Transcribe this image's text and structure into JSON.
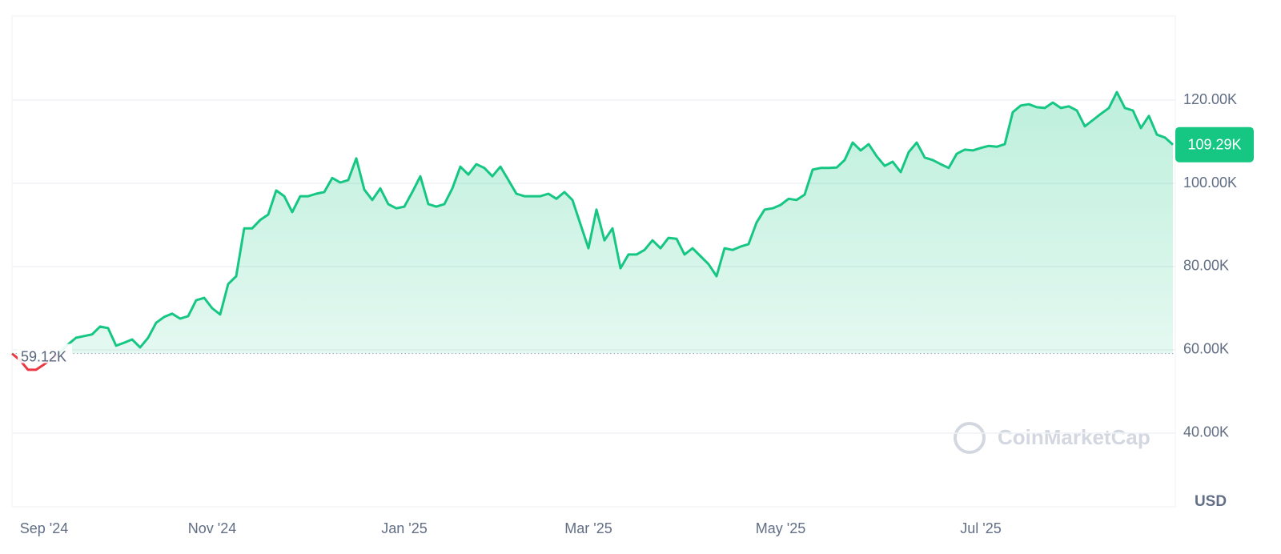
{
  "chart_data": {
    "type": "line",
    "categories": [
      null,
      null,
      null,
      null,
      "Sep '24",
      null,
      null,
      null,
      null,
      null,
      null,
      null,
      null,
      null,
      null,
      null,
      null,
      null,
      null,
      null,
      null,
      null,
      null,
      null,
      null,
      "Nov '24",
      null,
      null,
      null,
      null,
      null,
      null,
      null,
      null,
      null,
      null,
      null,
      null,
      null,
      null,
      null,
      null,
      null,
      null,
      null,
      null,
      null,
      null,
      null,
      "Jan '25",
      null,
      null,
      null,
      null,
      null,
      null,
      null,
      null,
      null,
      null,
      null,
      null,
      null,
      null,
      null,
      null,
      null,
      null,
      null,
      null,
      null,
      null,
      "Mar '25",
      null,
      null,
      null,
      null,
      null,
      null,
      null,
      null,
      null,
      null,
      null,
      null,
      null,
      null,
      null,
      null,
      null,
      null,
      null,
      null,
      null,
      null,
      null,
      "May '25",
      null,
      null,
      null,
      null,
      null,
      null,
      null,
      null,
      null,
      null,
      null,
      null,
      null,
      null,
      null,
      null,
      null,
      null,
      null,
      null,
      null,
      null,
      null,
      null,
      "Jul '25",
      null,
      null,
      null,
      null,
      null,
      null,
      null,
      null,
      null,
      null,
      null,
      null,
      null,
      null,
      null,
      null,
      null,
      null,
      null,
      null,
      null,
      null,
      null,
      null
    ],
    "series": [
      {
        "color": "#16c784",
        "below_color": "#ea3943",
        "values": [
          59120,
          57500,
          55200,
          55200,
          56500,
          57900,
          59400,
          61300,
          62900,
          63300,
          63700,
          65600,
          65200,
          61000,
          61700,
          62500,
          60600,
          62900,
          66500,
          67900,
          68700,
          67500,
          68100,
          71900,
          72500,
          70000,
          68500,
          75800,
          77700,
          89200,
          89200,
          91200,
          92500,
          98300,
          96900,
          93100,
          96900,
          96900,
          97500,
          97900,
          101300,
          100200,
          100800,
          106000,
          98500,
          96000,
          98800,
          95000,
          94000,
          94400,
          97900,
          101700,
          95000,
          94400,
          95000,
          98800,
          104000,
          102100,
          104600,
          103700,
          101700,
          104000,
          100800,
          97500,
          96900,
          96900,
          96900,
          97500,
          96300,
          97900,
          96000,
          90200,
          84400,
          93700,
          86300,
          89200,
          79600,
          82900,
          82900,
          84000,
          86300,
          84400,
          86900,
          86700,
          82900,
          84400,
          82500,
          80600,
          77700,
          84400,
          84000,
          84800,
          85400,
          90600,
          93700,
          94000,
          94800,
          96300,
          96000,
          97300,
          103300,
          103700,
          103700,
          103800,
          105600,
          109800,
          107900,
          109400,
          106500,
          104200,
          105200,
          102700,
          107500,
          109800,
          106200,
          105600,
          104600,
          103700,
          107100,
          108100,
          107900,
          108500,
          109000,
          108800,
          109400,
          117100,
          118700,
          119000,
          118300,
          118100,
          119400,
          118100,
          118500,
          117500,
          113700,
          115200,
          116700,
          118100,
          121900,
          118100,
          117500,
          113300,
          116200,
          111700,
          111000,
          109290
        ]
      }
    ],
    "start_label": "59.12K",
    "last_price_label": "109.29K",
    "ylim": [
      22300,
      140200
    ],
    "yticks": [
      {
        "value": 40000,
        "label": "40.00K"
      },
      {
        "value": 60000,
        "label": "60.00K"
      },
      {
        "value": 80000,
        "label": "80.00K"
      },
      {
        "value": 100000,
        "label": "100.00K"
      },
      {
        "value": 120000,
        "label": "120.00K"
      }
    ],
    "y_unit": "USD",
    "watermark": "CoinMarketCap",
    "grid": true
  }
}
